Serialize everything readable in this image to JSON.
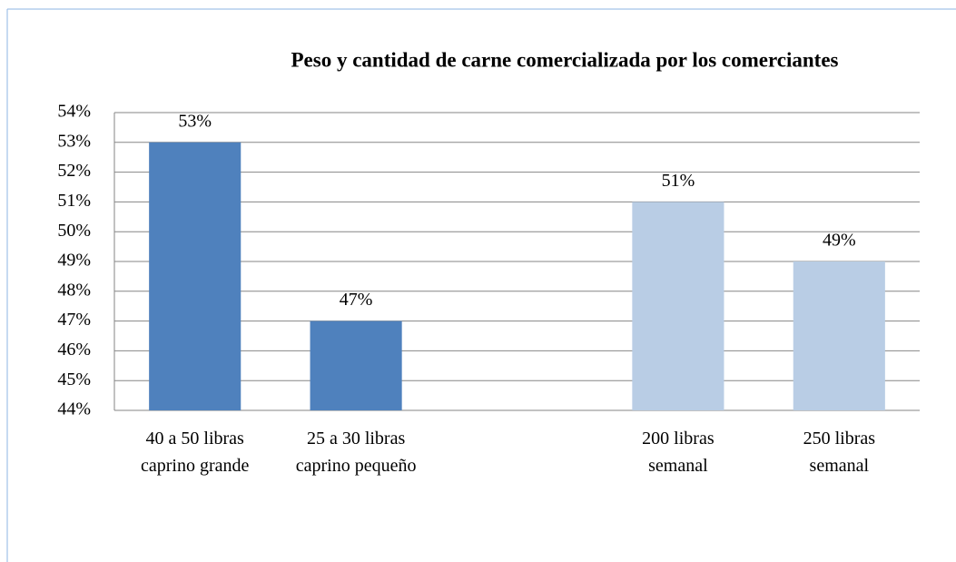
{
  "chart_data": {
    "type": "bar",
    "title": "Peso y cantidad de carne  comercializada por los comerciantes",
    "categories": [
      "40 a 50 libras\ncaprino grande",
      "25 a 30 libras\ncaprino pequeño",
      null,
      "200 libras\nsemanal",
      "250 libras\nsemanal"
    ],
    "values": [
      53,
      47,
      null,
      51,
      49
    ],
    "value_labels": [
      "53%",
      "47%",
      null,
      "51%",
      "49%"
    ],
    "colors": [
      "#4f81bd",
      "#4f81bd",
      null,
      "#b9cde5",
      "#b9cde5"
    ],
    "ylim": [
      44,
      54
    ],
    "yticks": [
      {
        "value": 44,
        "label": "44%"
      },
      {
        "value": 45,
        "label": "45%"
      },
      {
        "value": 46,
        "label": "46%"
      },
      {
        "value": 47,
        "label": "47%"
      },
      {
        "value": 48,
        "label": "48%"
      },
      {
        "value": 49,
        "label": "49%"
      },
      {
        "value": 50,
        "label": "50%"
      },
      {
        "value": 51,
        "label": "51%"
      },
      {
        "value": 52,
        "label": "52%"
      },
      {
        "value": 53,
        "label": "53%"
      },
      {
        "value": 54,
        "label": "54%"
      }
    ],
    "grid": true
  }
}
